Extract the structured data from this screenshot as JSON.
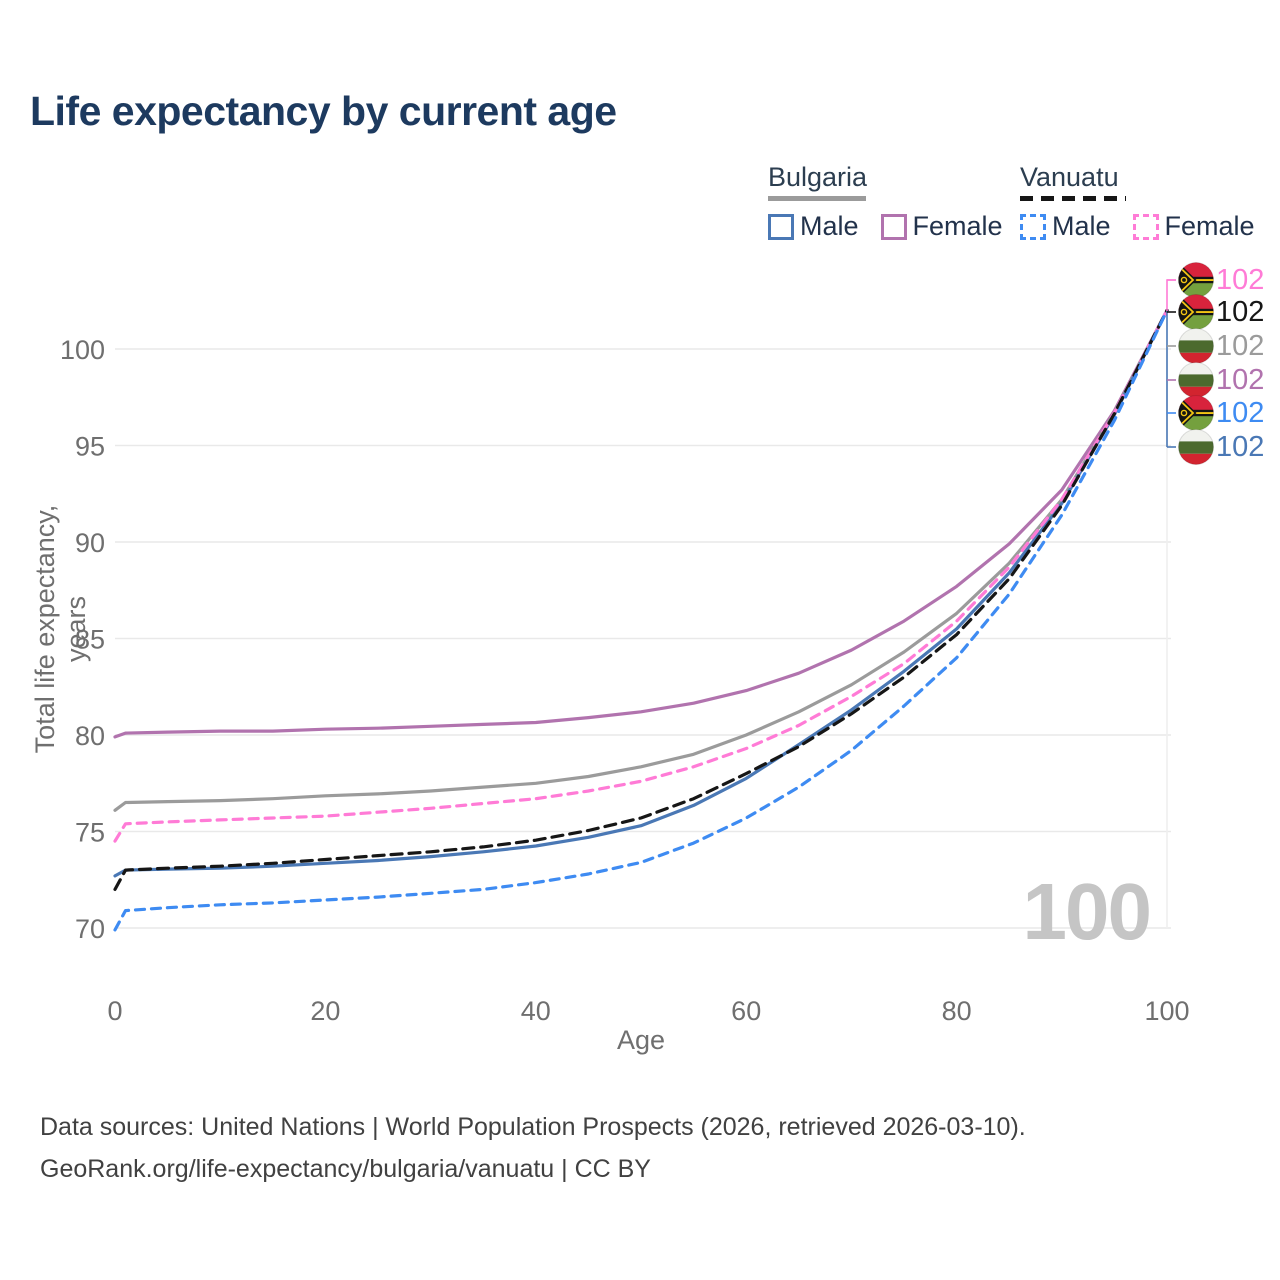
{
  "title": "Life expectancy by current age",
  "legend": {
    "groups": [
      {
        "label": "Bulgaria",
        "line_style": "solid",
        "underline_color": "#9b9b9b",
        "items": [
          {
            "label": "Male",
            "color": "#4a78b5"
          },
          {
            "label": "Female",
            "color": "#b173ae"
          }
        ]
      },
      {
        "label": "Vanuatu",
        "line_style": "dashed",
        "underline_color": "#161616",
        "items": [
          {
            "label": "Male",
            "color": "#3e8bf2"
          },
          {
            "label": "Female",
            "color": "#ff7bd6"
          }
        ]
      }
    ]
  },
  "colors": {
    "bulgaria_male": "#4a78b5",
    "bulgaria_female": "#b173ae",
    "bulgaria_all": "#9b9b9b",
    "vanuatu_male": "#3e8bf2",
    "vanuatu_female": "#ff7bd6",
    "vanuatu_all": "#161616",
    "title": "#1d3a5f",
    "axis_text": "#6f6f6f",
    "grid": "#e9e9e9",
    "watermark": "#c5c5c5"
  },
  "chart_data": {
    "type": "line",
    "xlabel": "Age",
    "ylabel": "Total life expectancy, years",
    "xticks": [
      0,
      20,
      40,
      60,
      80,
      100
    ],
    "yticks": [
      70,
      75,
      80,
      85,
      90,
      95,
      100
    ],
    "xlim": [
      0,
      100
    ],
    "ylim": [
      69,
      103
    ],
    "grid": "horizontal",
    "x": [
      0,
      1,
      5,
      10,
      15,
      20,
      25,
      30,
      35,
      40,
      45,
      50,
      55,
      60,
      65,
      70,
      75,
      80,
      85,
      90,
      95,
      100
    ],
    "series": [
      {
        "name": "Bulgaria Female",
        "color": "#b173ae",
        "dash": null,
        "values": [
          79.9,
          80.1,
          80.15,
          80.2,
          80.2,
          80.3,
          80.35,
          80.45,
          80.55,
          80.65,
          80.9,
          81.2,
          81.65,
          82.3,
          83.2,
          84.4,
          85.9,
          87.7,
          89.9,
          92.7,
          96.8,
          102
        ]
      },
      {
        "name": "Bulgaria All",
        "color": "#9b9b9b",
        "dash": null,
        "values": [
          76.1,
          76.5,
          76.55,
          76.6,
          76.7,
          76.85,
          76.95,
          77.1,
          77.3,
          77.5,
          77.85,
          78.35,
          79.0,
          80.0,
          81.2,
          82.6,
          84.3,
          86.3,
          88.9,
          92.2,
          96.7,
          102
        ]
      },
      {
        "name": "Bulgaria Male",
        "color": "#4a78b5",
        "dash": null,
        "values": [
          72.7,
          73.0,
          73.05,
          73.1,
          73.2,
          73.35,
          73.5,
          73.7,
          73.95,
          74.25,
          74.7,
          75.3,
          76.35,
          77.75,
          79.5,
          81.3,
          83.3,
          85.5,
          88.4,
          92.0,
          96.6,
          102
        ]
      },
      {
        "name": "Vanuatu Female",
        "color": "#ff7bd6",
        "dash": "9 7",
        "values": [
          74.5,
          75.4,
          75.5,
          75.6,
          75.7,
          75.8,
          76.0,
          76.2,
          76.45,
          76.7,
          77.1,
          77.6,
          78.35,
          79.3,
          80.5,
          82.0,
          83.7,
          85.9,
          88.7,
          92.2,
          96.7,
          102
        ]
      },
      {
        "name": "Vanuatu All",
        "color": "#161616",
        "dash": "11 7",
        "values": [
          72.0,
          73.0,
          73.1,
          73.2,
          73.35,
          73.55,
          73.75,
          73.95,
          74.2,
          74.55,
          75.05,
          75.7,
          76.7,
          78.0,
          79.4,
          81.1,
          83.0,
          85.2,
          88.1,
          91.9,
          96.65,
          102
        ]
      },
      {
        "name": "Vanuatu Male",
        "color": "#3e8bf2",
        "dash": "9 7",
        "values": [
          69.9,
          70.9,
          71.05,
          71.2,
          71.3,
          71.45,
          71.6,
          71.8,
          72.0,
          72.35,
          72.8,
          73.4,
          74.4,
          75.7,
          77.3,
          79.2,
          81.5,
          84.0,
          87.3,
          91.4,
          96.3,
          102
        ]
      }
    ],
    "end_labels": [
      {
        "text": "102",
        "color": "#ff7bd6",
        "flag": "vanuatu",
        "series": "Vanuatu Female"
      },
      {
        "text": "102",
        "color": "#161616",
        "flag": "vanuatu",
        "series": "Vanuatu All"
      },
      {
        "text": "102",
        "color": "#9b9b9b",
        "flag": "bulgaria",
        "series": "Bulgaria All"
      },
      {
        "text": "102",
        "color": "#b173ae",
        "flag": "bulgaria",
        "series": "Bulgaria Female"
      },
      {
        "text": "102",
        "color": "#3e8bf2",
        "flag": "vanuatu",
        "series": "Vanuatu Male"
      },
      {
        "text": "102",
        "color": "#4a78b5",
        "flag": "bulgaria",
        "series": "Bulgaria Male"
      }
    ],
    "legend_position": "top-right"
  },
  "watermark": {
    "value": "100"
  },
  "footer": {
    "line1": "Data sources: United Nations | World Population Prospects (2026, retrieved 2026-03-10).",
    "line2": "GeoRank.org/life-expectancy/bulgaria/vanuatu | CC BY"
  }
}
